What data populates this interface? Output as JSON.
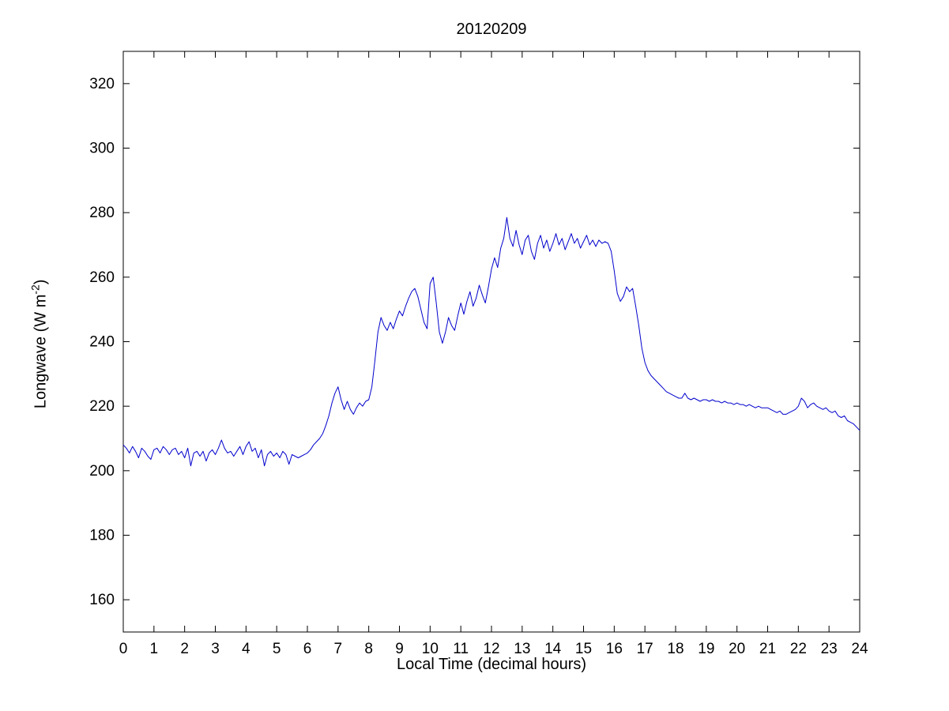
{
  "figure": {
    "title": "20120209",
    "xlabel": "Local Time (decimal hours)",
    "ylabel_pre": "Longwave (W m",
    "ylabel_sup": "-2",
    "ylabel_post": ")"
  },
  "chart_data": {
    "type": "line",
    "title": "20120209",
    "xlabel": "Local Time (decimal hours)",
    "ylabel": "Longwave (W m^-2)",
    "xlim": [
      0,
      24
    ],
    "ylim": [
      150,
      330
    ],
    "x_ticks": [
      0,
      1,
      2,
      3,
      4,
      5,
      6,
      7,
      8,
      9,
      10,
      11,
      12,
      13,
      14,
      15,
      16,
      17,
      18,
      19,
      20,
      21,
      22,
      23,
      24
    ],
    "y_ticks": [
      160,
      180,
      200,
      220,
      240,
      260,
      280,
      300,
      320
    ],
    "grid": false,
    "legend": "none",
    "line_color": "#0000CD",
    "x_start": 0,
    "x_step": 0.1,
    "y": [
      208,
      207,
      205.5,
      207.5,
      206,
      204,
      207,
      206,
      204.5,
      203.5,
      206.5,
      207,
      205.5,
      207.5,
      206.5,
      205,
      206.5,
      207,
      205,
      206,
      204,
      207,
      201.5,
      205.5,
      206,
      204.5,
      206,
      203,
      205.5,
      206.5,
      205,
      207,
      209.5,
      207,
      205.5,
      206,
      204.5,
      206,
      207.5,
      205,
      207.5,
      209,
      206,
      207,
      204,
      206.5,
      201.5,
      205,
      206,
      204.5,
      205.5,
      204,
      206,
      205,
      202,
      205,
      204.5,
      204,
      204.5,
      205,
      205.5,
      206.5,
      208,
      209,
      210,
      211.5,
      214,
      217,
      221,
      224,
      226,
      222,
      219,
      221.5,
      219,
      217.5,
      219.5,
      221,
      220,
      221.5,
      222,
      226,
      234,
      243,
      247.5,
      245,
      243.5,
      246,
      244,
      247,
      249.5,
      248,
      251,
      253.5,
      255.5,
      256.5,
      254,
      250,
      246,
      244,
      258,
      260,
      252,
      243,
      239.5,
      243,
      247.5,
      245,
      243.5,
      248,
      252,
      248.5,
      252.5,
      255.5,
      251,
      253.5,
      257.5,
      254.5,
      252,
      257,
      262.5,
      266,
      263,
      269,
      272,
      278.5,
      272,
      269.5,
      274.5,
      270,
      267,
      271.5,
      273,
      268,
      265.5,
      270.5,
      273,
      269,
      271.5,
      268,
      270.5,
      273.5,
      270,
      272,
      268.5,
      271,
      273.5,
      270.5,
      272,
      269,
      271,
      273,
      270,
      271.5,
      269.5,
      271.5,
      270.5,
      271,
      270.5,
      268,
      262,
      255,
      252.5,
      254,
      257,
      255.5,
      256.5,
      251,
      245,
      238,
      233.5,
      231,
      229.5,
      228.5,
      227.5,
      226.5,
      225.5,
      224.5,
      224,
      223.5,
      223,
      222.5,
      222.5,
      224,
      222.5,
      222,
      222.5,
      222,
      221.5,
      222,
      222,
      221.5,
      222,
      221.5,
      221.5,
      221,
      221.5,
      221,
      221,
      220.5,
      221,
      220.5,
      220.5,
      220,
      220.5,
      220,
      219.5,
      220,
      219.5,
      219.5,
      219.5,
      219,
      218.5,
      218,
      218.5,
      217.5,
      217.5,
      218,
      218.5,
      219,
      220,
      222.5,
      221.5,
      219.5,
      220.5,
      221,
      220,
      219.5,
      219,
      219.5,
      218.5,
      218,
      218.5,
      217,
      216.5,
      217,
      215.5,
      215,
      214.5,
      213.5,
      212.5
    ]
  }
}
